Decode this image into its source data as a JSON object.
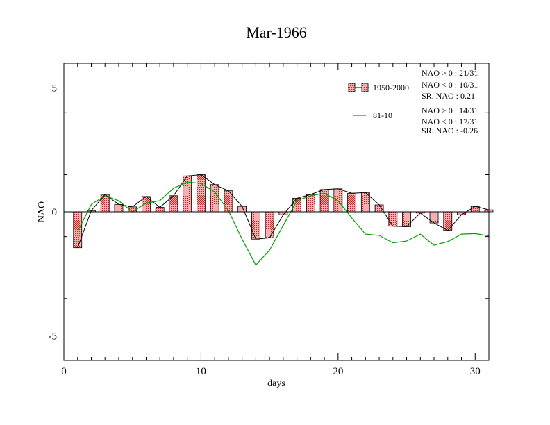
{
  "chart_data": {
    "type": "bar",
    "title": "Mar-1966",
    "xlabel": "days",
    "ylabel": "NAO",
    "xlim": [
      0,
      31
    ],
    "ylim": [
      -6,
      6
    ],
    "x_ticks": [
      0,
      10,
      20,
      30
    ],
    "y_ticks": [
      -5,
      0,
      5
    ],
    "x": [
      1,
      2,
      3,
      4,
      5,
      6,
      7,
      8,
      9,
      10,
      11,
      12,
      13,
      14,
      15,
      16,
      17,
      18,
      19,
      20,
      21,
      22,
      23,
      24,
      25,
      26,
      27,
      28,
      29,
      30,
      31
    ],
    "series": [
      {
        "name": "1950-2000",
        "render": "bars+line",
        "color": "#e05050",
        "values": [
          -1.45,
          0.05,
          0.7,
          0.3,
          0.2,
          0.62,
          0.18,
          0.65,
          1.45,
          1.5,
          1.1,
          0.85,
          0.22,
          -1.1,
          -1.05,
          -0.12,
          0.55,
          0.7,
          0.9,
          0.93,
          0.75,
          0.78,
          0.28,
          -0.58,
          -0.6,
          -0.05,
          -0.45,
          -0.75,
          -0.12,
          0.22,
          0.08
        ]
      },
      {
        "name": "81-10",
        "render": "line",
        "color": "#00a000",
        "values": [
          -0.8,
          0.3,
          0.65,
          0.45,
          0.0,
          0.35,
          0.45,
          0.95,
          1.2,
          1.15,
          0.8,
          0.05,
          -1.1,
          -2.15,
          -1.55,
          -0.55,
          0.45,
          0.65,
          0.75,
          0.45,
          -0.25,
          -0.9,
          -0.95,
          -1.25,
          -1.18,
          -0.9,
          -1.35,
          -1.2,
          -0.9,
          -0.88,
          -0.97
        ]
      }
    ],
    "legend_stats": [
      [
        "NAO > 0 : 21/31",
        "NAO < 0 : 10/31",
        "SR. NAO :  0.21"
      ],
      [
        "NAO > 0 : 14/31",
        "NAO < 0 : 17/31",
        "SR. NAO : -0.26"
      ]
    ],
    "legend_position": "top-right",
    "grid": false
  }
}
